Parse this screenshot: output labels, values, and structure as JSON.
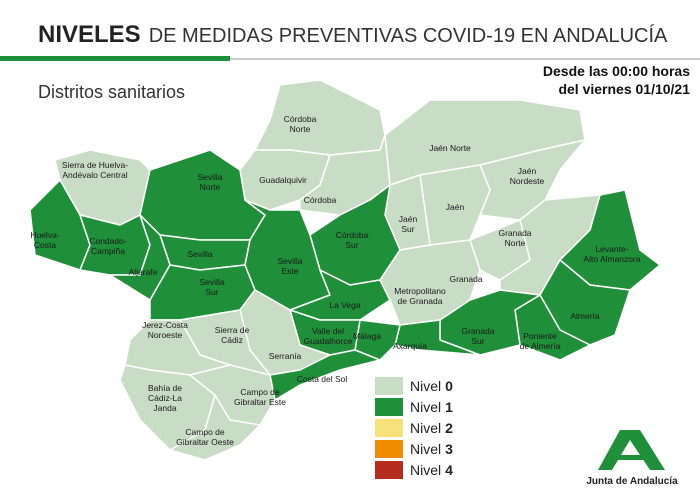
{
  "header": {
    "title_bold": "NIVELES",
    "title_rest": "DE MEDIDAS PREVENTIVAS COVID-19 EN ANDALUCÍA",
    "subtitle": "Distritos sanitarios",
    "date_line1": "Desde las 00:00 horas",
    "date_line2": "del viernes 01/10/21"
  },
  "districts": [
    {
      "lines": [
        "Córdoba",
        "Norte"
      ],
      "level": 0
    },
    {
      "lines": [
        "Guadalquivir"
      ],
      "level": 0
    },
    {
      "lines": [
        "Córdoba"
      ],
      "level": 0
    },
    {
      "lines": [
        "Jaén Norte"
      ],
      "level": 0
    },
    {
      "lines": [
        "Jaén",
        "Nordeste"
      ],
      "level": 0
    },
    {
      "lines": [
        "Jaén"
      ],
      "level": 0
    },
    {
      "lines": [
        "Jaén",
        "Sur"
      ],
      "level": 0
    },
    {
      "lines": [
        "Córdoba",
        "Sur"
      ],
      "level": 1
    },
    {
      "lines": [
        "Sierra de Huelva-",
        "Andévalo Central"
      ],
      "level": 0
    },
    {
      "lines": [
        "Huelva-",
        "Costa"
      ],
      "level": 1
    },
    {
      "lines": [
        "Condado-",
        "Campiña"
      ],
      "level": 1
    },
    {
      "lines": [
        "Sevilla",
        "Norte"
      ],
      "level": 1
    },
    {
      "lines": [
        "Sevilla"
      ],
      "level": 1
    },
    {
      "lines": [
        "Aljarafe"
      ],
      "level": 1
    },
    {
      "lines": [
        "Sevilla",
        "Sur"
      ],
      "level": 1
    },
    {
      "lines": [
        "Sevilla",
        "Este"
      ],
      "level": 1
    },
    {
      "lines": [
        "La Vega"
      ],
      "level": 1
    },
    {
      "lines": [
        "Granada"
      ],
      "level": 0
    },
    {
      "lines": [
        "Metropolitano",
        "de Granada"
      ],
      "level": 0
    },
    {
      "lines": [
        "Granada",
        "Norte"
      ],
      "level": 0
    },
    {
      "lines": [
        "Levante-",
        "Alto Almanzora"
      ],
      "level": 1
    },
    {
      "lines": [
        "Almería"
      ],
      "level": 1
    },
    {
      "lines": [
        "Poniente",
        "de Almería"
      ],
      "level": 1
    },
    {
      "lines": [
        "Granada",
        "Sur"
      ],
      "level": 1
    },
    {
      "lines": [
        "Axarquía"
      ],
      "level": 1
    },
    {
      "lines": [
        "Málaga"
      ],
      "level": 1
    },
    {
      "lines": [
        "Valle del",
        "Guadalhorce"
      ],
      "level": 1
    },
    {
      "lines": [
        "Serranía"
      ],
      "level": 0
    },
    {
      "lines": [
        "Costa del Sol"
      ],
      "level": 1
    },
    {
      "lines": [
        "Sierra de",
        "Cádiz"
      ],
      "level": 0
    },
    {
      "lines": [
        "Jerez-Costa",
        "Noroeste"
      ],
      "level": 0
    },
    {
      "lines": [
        "Bahía de",
        "Cádiz-La",
        "Janda"
      ],
      "level": 0
    },
    {
      "lines": [
        "Campo de",
        "Gibraltar Este"
      ],
      "level": 0
    },
    {
      "lines": [
        "Campo de",
        "Gibraltar Oeste"
      ],
      "level": 0
    }
  ],
  "legend": [
    {
      "label": "Nivel",
      "level": 0,
      "color": "#c9dcc5"
    },
    {
      "label": "Nivel",
      "level": 1,
      "color": "#1f8f3a"
    },
    {
      "label": "Nivel",
      "level": 2,
      "color": "#f7e17a"
    },
    {
      "label": "Nivel",
      "level": 3,
      "color": "#f08c00"
    },
    {
      "label": "Nivel",
      "level": 4,
      "color": "#b52b1d"
    }
  ],
  "footer": {
    "logo_text": "Junta de Andalucía"
  }
}
